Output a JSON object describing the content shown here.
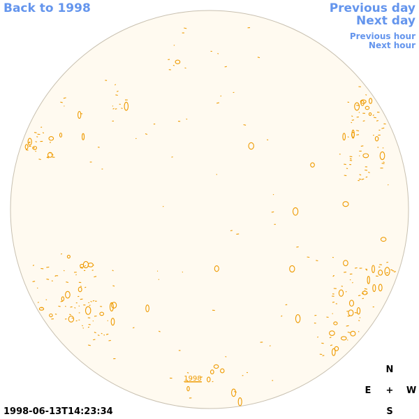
{
  "nav": {
    "back_label": "Back to 1998",
    "prev_day_label": "Previous day",
    "next_day_label": "Next day",
    "prev_hour_label": "Previous hour",
    "next_hour_label": "Next hour"
  },
  "disk": {
    "year_label": "1998"
  },
  "timestamp": "1998-06-13T14:23:34",
  "compass": {
    "north": "N",
    "east": "E",
    "center": "+",
    "west": "W",
    "south": "S"
  },
  "colors": {
    "link": "#6495ed",
    "disk_fill": "#fffaf0",
    "disk_stroke": "#c8c0b0",
    "contour": "#ee9a00"
  }
}
